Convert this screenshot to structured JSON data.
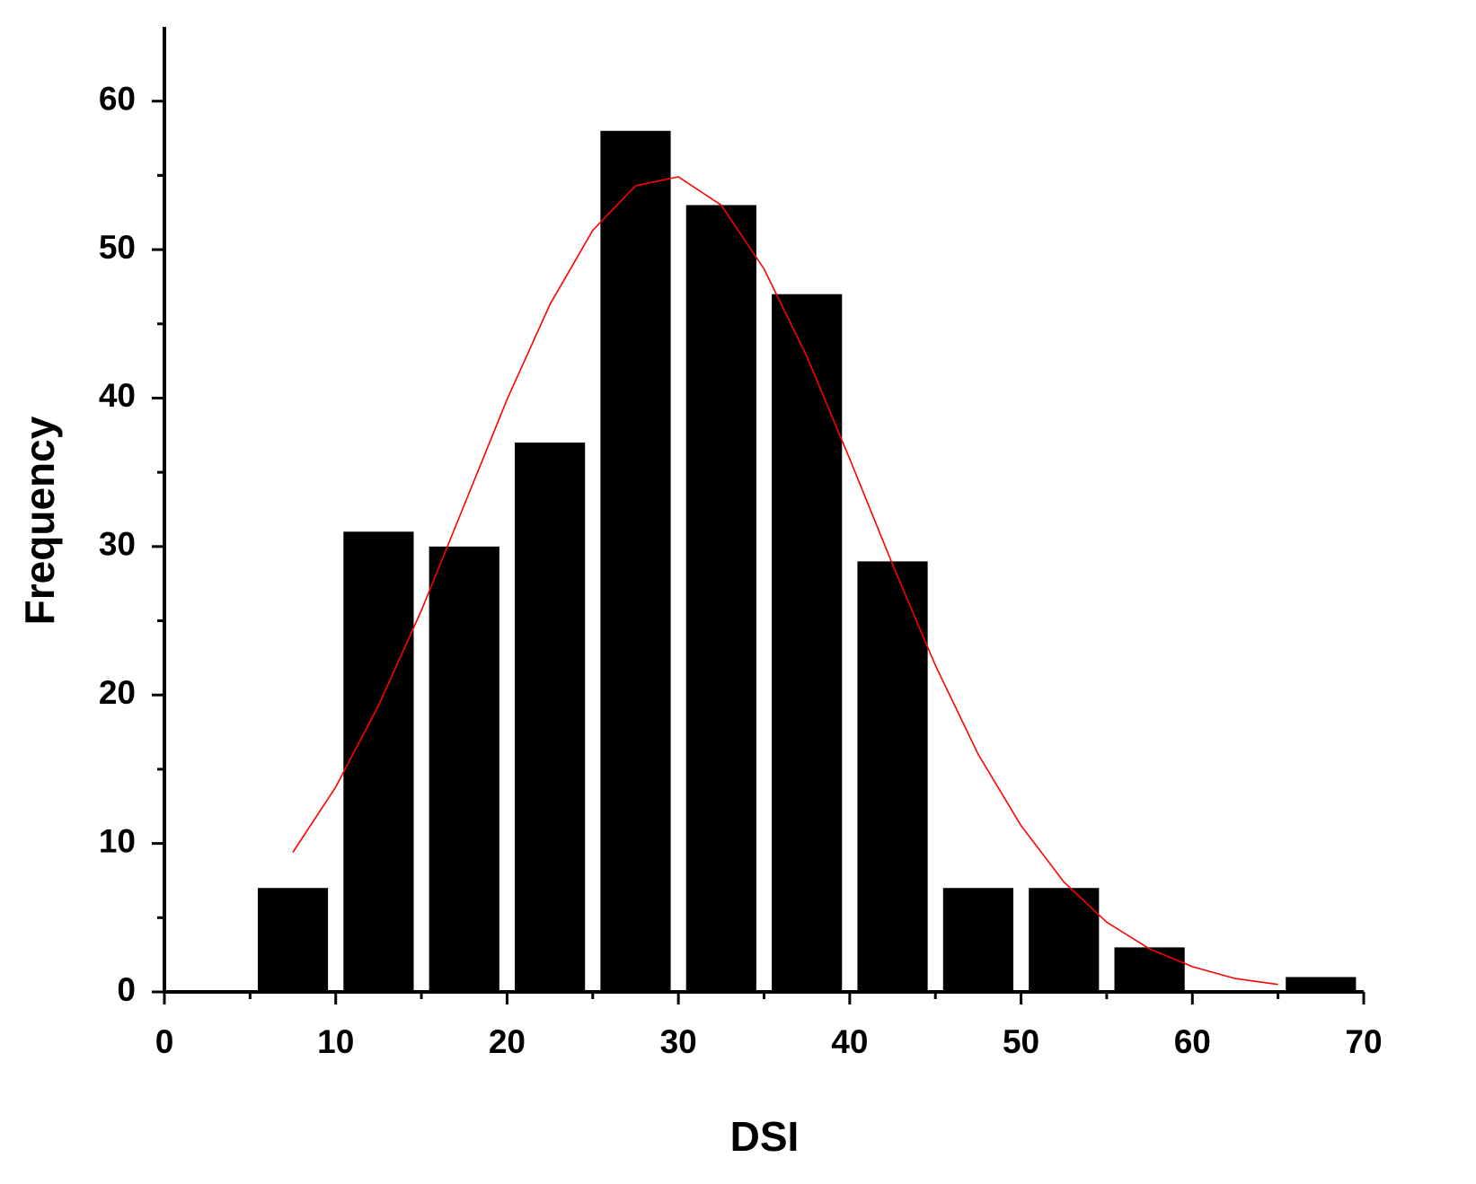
{
  "chart_data": {
    "type": "histogram",
    "xlabel": "DSI",
    "ylabel": "Frequency",
    "bins": [
      5,
      10,
      15,
      20,
      25,
      30,
      35,
      40,
      45,
      50,
      55,
      60,
      65,
      70
    ],
    "values": [
      7,
      31,
      30,
      37,
      58,
      53,
      47,
      29,
      7,
      7,
      3,
      0,
      1
    ],
    "color": "#000000",
    "fit": {
      "x": [
        7.5,
        10,
        12.5,
        15,
        17.5,
        20,
        22.5,
        25,
        27.5,
        30,
        32.5,
        35,
        37.5,
        40,
        42.5,
        45,
        47.5,
        50,
        52.5,
        55,
        57.5,
        60,
        62.5,
        65
      ],
      "values": [
        9.4,
        13.8,
        19.3,
        25.7,
        32.8,
        39.9,
        46.3,
        51.3,
        54.3,
        54.9,
        53.0,
        48.7,
        42.8,
        35.9,
        28.8,
        22.0,
        16.0,
        11.2,
        7.4,
        4.7,
        2.9,
        1.7,
        0.9,
        0.5
      ],
      "color": "#ff0000"
    },
    "xlim": [
      0,
      70
    ],
    "xticks": [
      0,
      10,
      20,
      30,
      40,
      50,
      60,
      70
    ],
    "ylim": [
      0,
      65
    ],
    "yticks": [
      0,
      10,
      20,
      30,
      40,
      50,
      60
    ],
    "grid": false
  }
}
